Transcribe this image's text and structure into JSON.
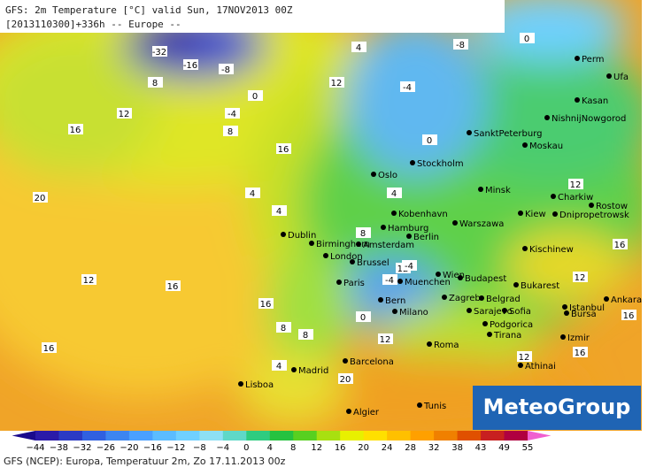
{
  "header": {
    "line1": "GFS: 2m Temperature [°C] valid Sun, 17NOV2013 00Z",
    "line2": "[2013110300]+336h -- Europe --"
  },
  "cities": [
    "Perm",
    "Ufa",
    "Kasan",
    "NishnijNowgorod",
    "SanktPeterburg",
    "Moskau",
    "Stockholm",
    "Oslo",
    "Minsk",
    "Charkiw",
    "Rostow",
    "Kiew",
    "Dnipropetrowsk",
    "Kobenhavn",
    "Hamburg",
    "Berlin",
    "Warszawa",
    "Dublin",
    "Birmingham",
    "Amsterdam",
    "London",
    "Brussel",
    "Kischinew",
    "Paris",
    "Wien",
    "Budapest",
    "Bukarest",
    "Muenchen",
    "Zagreb",
    "Belgrad",
    "Bern",
    "Milano",
    "Sarajevo",
    "Sofia",
    "Istanbul",
    "Ankara",
    "Bursa",
    "Podgorica",
    "Tirana",
    "Izmir",
    "Roma",
    "Athinai",
    "Barcelona",
    "Madrid",
    "Lisboa",
    "Algier",
    "Tunis"
  ],
  "contour_labels": [
    "-32",
    "-16",
    "-8",
    "0",
    "-4",
    "4",
    "8",
    "12",
    "16",
    "20",
    "4",
    "8",
    "12",
    "16",
    "4",
    "-8",
    "-4",
    "0",
    "4",
    "8",
    "12",
    "16",
    "12",
    "16",
    "8",
    "16",
    "20",
    "12",
    "8",
    "4",
    "0",
    "-4",
    "-4",
    "0",
    "12",
    "16",
    "12",
    "16",
    "16",
    "12"
  ],
  "logo": "MeteoGroup",
  "colorbar": {
    "labels": [
      "−44",
      "−38",
      "−32",
      "−26",
      "−20",
      "−16",
      "−12",
      "−8",
      "−4",
      "0",
      "4",
      "8",
      "12",
      "16",
      "20",
      "24",
      "28",
      "32",
      "38",
      "43",
      "49",
      "55"
    ],
    "colors": [
      "#1a0a8c",
      "#2a1aa8",
      "#2b3ac4",
      "#3060e0",
      "#3d85f0",
      "#4aa0ff",
      "#5bbcff",
      "#70d0ff",
      "#8de0f5",
      "#5fd8c8",
      "#2ecc80",
      "#26c240",
      "#58d020",
      "#a8e010",
      "#e8f000",
      "#ffe000",
      "#ffc000",
      "#ffa000",
      "#f08000",
      "#e05000",
      "#c82020",
      "#b00040",
      "#f060d0"
    ]
  },
  "footer": "GFS (NCEP): Europa, Temperatuur 2m, Zo 17.11.2013 00z"
}
